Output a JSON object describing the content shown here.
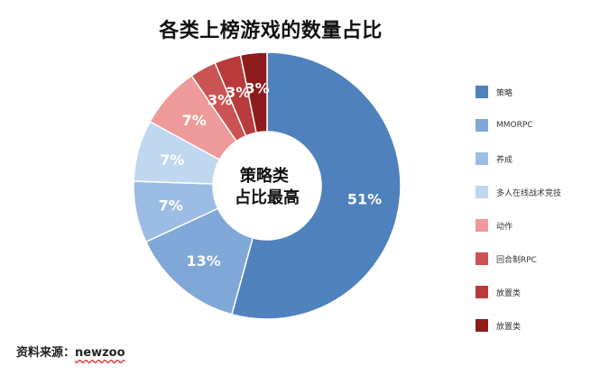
{
  "chart_data": {
    "type": "pie",
    "subtype": "donut",
    "title": "各类上榜游戏的数量占比",
    "center_text": [
      "策略类",
      "占比最高"
    ],
    "slices": [
      {
        "label": "策略",
        "value": 51,
        "display": "51%",
        "color": "#4f81bd"
      },
      {
        "label": "MMORPC",
        "value": 13,
        "display": "13%",
        "color": "#7fa7d8"
      },
      {
        "label": "养成",
        "value": 7,
        "display": "7%",
        "color": "#9cbde3"
      },
      {
        "label": "多人在线战术竞技",
        "value": 7,
        "display": "7%",
        "color": "#bfd7ef"
      },
      {
        "label": "动作",
        "value": 7,
        "display": "7%",
        "color": "#ee9a9a"
      },
      {
        "label": "回合制RPC",
        "value": 3,
        "display": "3%",
        "color": "#cc5353"
      },
      {
        "label": "放置类",
        "value": 3,
        "display": "3%",
        "color": "#b93a3a"
      },
      {
        "label": "放置类",
        "value": 3,
        "display": "3%",
        "color": "#8f1c1c"
      }
    ],
    "legend_position": "right"
  },
  "source": {
    "prefix": "资料来源：",
    "name": "newzoo"
  }
}
